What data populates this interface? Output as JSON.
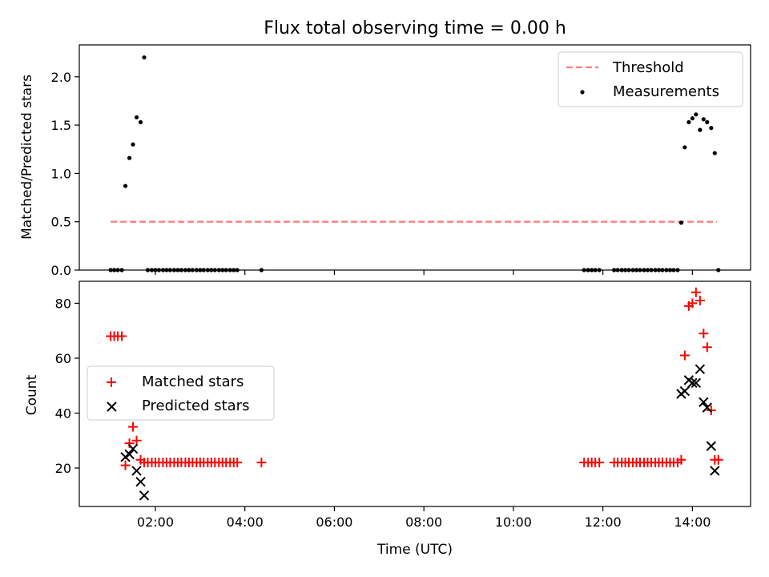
{
  "chart_data": [
    {
      "type": "scatter",
      "title": "Flux total observing time = 0.00 h",
      "xlabel": "",
      "ylabel": "Matched/Predicted stars",
      "xlim": [
        0.3,
        15.3
      ],
      "ylim": [
        0,
        2.33
      ],
      "x_tick_labels": [
        "02:00",
        "04:00",
        "06:00",
        "08:00",
        "10:00",
        "12:00",
        "14:00"
      ],
      "x_tick_values": [
        2,
        4,
        6,
        8,
        10,
        12,
        14
      ],
      "y_ticks": [
        "0.0",
        "0.5",
        "1.0",
        "1.5",
        "2.0"
      ],
      "legend_position": "top-right",
      "series": [
        {
          "name": "Threshold",
          "style": "dashed-line",
          "color": "#ff7f7f",
          "points": [
            [
              1.0,
              0.5
            ],
            [
              14.55,
              0.5
            ]
          ]
        },
        {
          "name": "Measurements",
          "style": "dot",
          "color": "#000000",
          "points": [
            [
              1.0,
              0
            ],
            [
              1.08,
              0
            ],
            [
              1.16,
              0
            ],
            [
              1.25,
              0
            ],
            [
              1.33,
              0.87
            ],
            [
              1.42,
              1.16
            ],
            [
              1.5,
              1.3
            ],
            [
              1.58,
              1.58
            ],
            [
              1.67,
              1.53
            ],
            [
              1.75,
              2.2
            ],
            [
              1.83,
              0
            ],
            [
              1.92,
              0
            ],
            [
              2.0,
              0
            ],
            [
              2.08,
              0
            ],
            [
              2.17,
              0
            ],
            [
              2.25,
              0
            ],
            [
              2.33,
              0
            ],
            [
              2.42,
              0
            ],
            [
              2.5,
              0
            ],
            [
              2.58,
              0
            ],
            [
              2.67,
              0
            ],
            [
              2.75,
              0
            ],
            [
              2.83,
              0
            ],
            [
              2.92,
              0
            ],
            [
              3.0,
              0
            ],
            [
              3.08,
              0
            ],
            [
              3.17,
              0
            ],
            [
              3.25,
              0
            ],
            [
              3.33,
              0
            ],
            [
              3.42,
              0
            ],
            [
              3.5,
              0
            ],
            [
              3.58,
              0
            ],
            [
              3.67,
              0
            ],
            [
              3.75,
              0
            ],
            [
              3.83,
              0
            ],
            [
              4.37,
              0
            ],
            [
              11.58,
              0
            ],
            [
              11.67,
              0
            ],
            [
              11.75,
              0
            ],
            [
              11.83,
              0
            ],
            [
              11.92,
              0
            ],
            [
              12.25,
              0
            ],
            [
              12.33,
              0
            ],
            [
              12.42,
              0
            ],
            [
              12.5,
              0
            ],
            [
              12.58,
              0
            ],
            [
              12.67,
              0
            ],
            [
              12.75,
              0
            ],
            [
              12.83,
              0
            ],
            [
              12.92,
              0
            ],
            [
              13.0,
              0
            ],
            [
              13.08,
              0
            ],
            [
              13.17,
              0
            ],
            [
              13.25,
              0
            ],
            [
              13.33,
              0
            ],
            [
              13.42,
              0
            ],
            [
              13.5,
              0
            ],
            [
              13.58,
              0
            ],
            [
              13.67,
              0
            ],
            [
              13.75,
              0.49
            ],
            [
              13.83,
              1.27
            ],
            [
              13.92,
              1.53
            ],
            [
              14.0,
              1.57
            ],
            [
              14.08,
              1.61
            ],
            [
              14.17,
              1.45
            ],
            [
              14.25,
              1.56
            ],
            [
              14.33,
              1.53
            ],
            [
              14.42,
              1.47
            ],
            [
              14.5,
              1.21
            ],
            [
              14.58,
              0
            ]
          ]
        }
      ]
    },
    {
      "type": "scatter",
      "title": "",
      "xlabel": "Time (UTC)",
      "ylabel": "Count",
      "xlim": [
        0.3,
        15.3
      ],
      "ylim": [
        6,
        88
      ],
      "x_tick_labels": [
        "02:00",
        "04:00",
        "06:00",
        "08:00",
        "10:00",
        "12:00",
        "14:00"
      ],
      "x_tick_values": [
        2,
        4,
        6,
        8,
        10,
        12,
        14
      ],
      "y_ticks": [
        "20",
        "40",
        "60",
        "80"
      ],
      "legend_position": "center-left",
      "series": [
        {
          "name": "Matched stars",
          "style": "plus",
          "color": "#ff0000",
          "points": [
            [
              1.0,
              68
            ],
            [
              1.08,
              68
            ],
            [
              1.16,
              68
            ],
            [
              1.25,
              68
            ],
            [
              1.33,
              21
            ],
            [
              1.42,
              29
            ],
            [
              1.5,
              35
            ],
            [
              1.58,
              30
            ],
            [
              1.67,
              23
            ],
            [
              1.75,
              22
            ],
            [
              1.83,
              22
            ],
            [
              1.92,
              22
            ],
            [
              2.0,
              22
            ],
            [
              2.08,
              22
            ],
            [
              2.17,
              22
            ],
            [
              2.25,
              22
            ],
            [
              2.33,
              22
            ],
            [
              2.42,
              22
            ],
            [
              2.5,
              22
            ],
            [
              2.58,
              22
            ],
            [
              2.67,
              22
            ],
            [
              2.75,
              22
            ],
            [
              2.83,
              22
            ],
            [
              2.92,
              22
            ],
            [
              3.0,
              22
            ],
            [
              3.08,
              22
            ],
            [
              3.17,
              22
            ],
            [
              3.25,
              22
            ],
            [
              3.33,
              22
            ],
            [
              3.42,
              22
            ],
            [
              3.5,
              22
            ],
            [
              3.58,
              22
            ],
            [
              3.67,
              22
            ],
            [
              3.75,
              22
            ],
            [
              3.83,
              22
            ],
            [
              4.37,
              22
            ],
            [
              11.58,
              22
            ],
            [
              11.67,
              22
            ],
            [
              11.75,
              22
            ],
            [
              11.83,
              22
            ],
            [
              11.92,
              22
            ],
            [
              12.25,
              22
            ],
            [
              12.33,
              22
            ],
            [
              12.42,
              22
            ],
            [
              12.5,
              22
            ],
            [
              12.58,
              22
            ],
            [
              12.67,
              22
            ],
            [
              12.75,
              22
            ],
            [
              12.83,
              22
            ],
            [
              12.92,
              22
            ],
            [
              13.0,
              22
            ],
            [
              13.08,
              22
            ],
            [
              13.17,
              22
            ],
            [
              13.25,
              22
            ],
            [
              13.33,
              22
            ],
            [
              13.42,
              22
            ],
            [
              13.5,
              22
            ],
            [
              13.58,
              22
            ],
            [
              13.67,
              22
            ],
            [
              13.75,
              23
            ],
            [
              13.83,
              61
            ],
            [
              13.92,
              79
            ],
            [
              14.0,
              80
            ],
            [
              14.08,
              84
            ],
            [
              14.17,
              81
            ],
            [
              14.25,
              69
            ],
            [
              14.33,
              64
            ],
            [
              14.42,
              41
            ],
            [
              14.5,
              23
            ],
            [
              14.58,
              23
            ]
          ]
        },
        {
          "name": "Predicted stars",
          "style": "x",
          "color": "#000000",
          "points": [
            [
              1.33,
              24
            ],
            [
              1.42,
              25
            ],
            [
              1.5,
              27
            ],
            [
              1.58,
              19
            ],
            [
              1.67,
              15
            ],
            [
              1.75,
              10
            ],
            [
              13.75,
              47
            ],
            [
              13.83,
              48
            ],
            [
              13.92,
              52
            ],
            [
              14.0,
              51
            ],
            [
              14.08,
              51
            ],
            [
              14.17,
              56
            ],
            [
              14.25,
              44
            ],
            [
              14.33,
              42
            ],
            [
              14.42,
              28
            ],
            [
              14.5,
              19
            ]
          ]
        }
      ]
    }
  ]
}
